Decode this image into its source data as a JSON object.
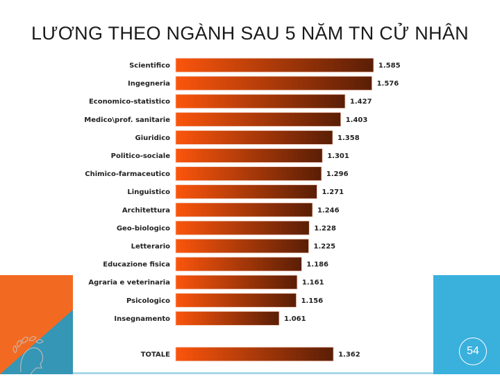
{
  "slide": {
    "title": "LƯƠNG THEO NGÀNH SAU 5 NĂM TN CỬ NHÂN",
    "page_number": "54",
    "colors": {
      "orange": "#f26a21",
      "blue": "#3ab0dd",
      "teal": "#3596b5"
    },
    "logo": "laurel-crowned-head-logo"
  },
  "chart_data": {
    "type": "bar",
    "orientation": "horizontal",
    "categories": [
      "Scientifico",
      "Ingegneria",
      "Economico-statistico",
      "Medico\\prof. sanitarie",
      "Giuridico",
      "Politico-sociale",
      "Chimico-farmaceutico",
      "Linguistico",
      "Architettura",
      "Geo-biologico",
      "Letterario",
      "Educazione fisica",
      "Agraria e veterinaria",
      "Psicologico",
      "Insegnamento"
    ],
    "values": [
      1.585,
      1.576,
      1.427,
      1.403,
      1.358,
      1.301,
      1.296,
      1.271,
      1.246,
      1.228,
      1.225,
      1.186,
      1.161,
      1.156,
      1.061
    ],
    "value_labels": [
      "1.585",
      "1.576",
      "1.427",
      "1.403",
      "1.358",
      "1.301",
      "1.296",
      "1.271",
      "1.246",
      "1.228",
      "1.225",
      "1.186",
      "1.161",
      "1.156",
      "1.061"
    ],
    "total": {
      "label": "TOTALE",
      "value": 1.362,
      "value_label": "1.362"
    },
    "bar_gradient": [
      "#fb550c",
      "#5a1e06"
    ],
    "grid": false
  }
}
